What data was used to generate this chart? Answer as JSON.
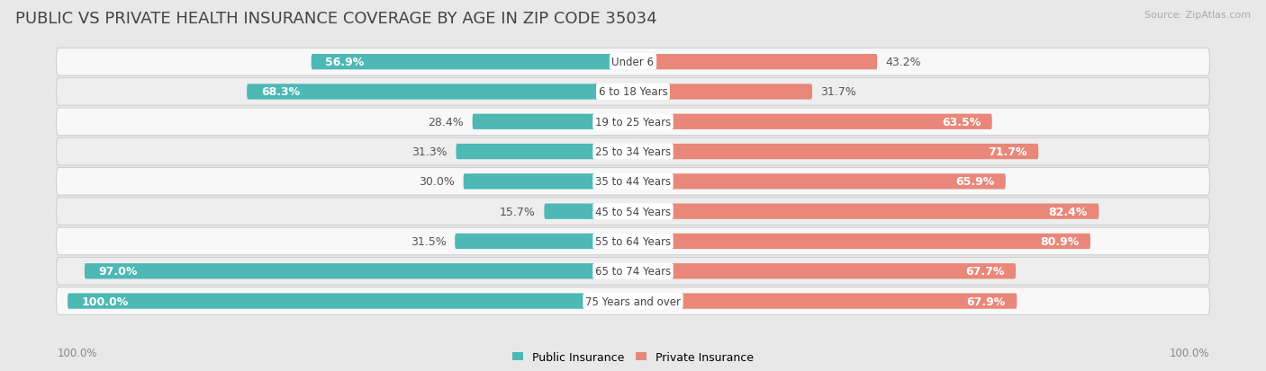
{
  "title": "PUBLIC VS PRIVATE HEALTH INSURANCE COVERAGE BY AGE IN ZIP CODE 35034",
  "source": "Source: ZipAtlas.com",
  "categories": [
    "Under 6",
    "6 to 18 Years",
    "19 to 25 Years",
    "25 to 34 Years",
    "35 to 44 Years",
    "45 to 54 Years",
    "55 to 64 Years",
    "65 to 74 Years",
    "75 Years and over"
  ],
  "public_values": [
    56.9,
    68.3,
    28.4,
    31.3,
    30.0,
    15.7,
    31.5,
    97.0,
    100.0
  ],
  "private_values": [
    43.2,
    31.7,
    63.5,
    71.7,
    65.9,
    82.4,
    80.9,
    67.7,
    67.9
  ],
  "public_color": "#4db8b4",
  "private_color": "#e8877a",
  "row_bg_even": "#f5f5f5",
  "row_bg_odd": "#ebebeb",
  "bg_color": "#e8e8e8",
  "bar_height": 0.52,
  "title_fontsize": 13,
  "source_fontsize": 8,
  "label_fontsize": 9,
  "category_fontsize": 8.5,
  "legend_labels": [
    "Public Insurance",
    "Private Insurance"
  ],
  "pub_label_inside_threshold": 55,
  "priv_label_inside_threshold": 50,
  "xlim": 100,
  "axis_label": "100.0%"
}
